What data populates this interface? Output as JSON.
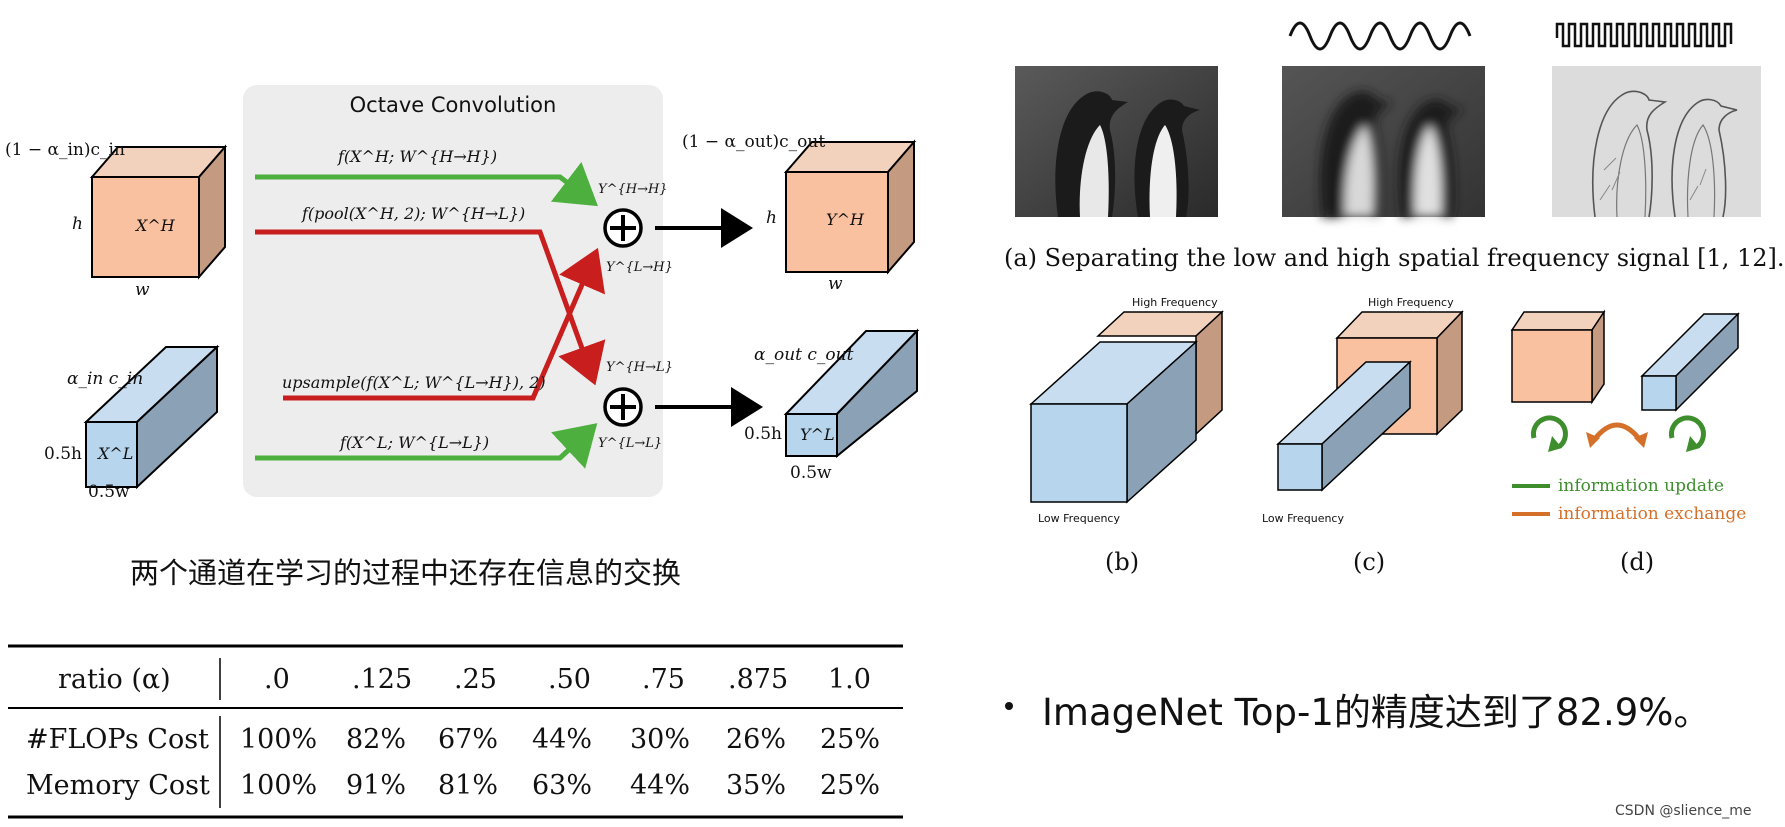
{
  "octave": {
    "title": "Octave Convolution",
    "in_high_channels": "(1 − α_in)c_in",
    "in_high_h": "h",
    "in_high_w": "w",
    "in_high_tensor": "X^H",
    "in_low_channels": "α_in c_in",
    "in_low_h": "0.5h",
    "in_low_w": "0.5w",
    "in_low_tensor": "X^L",
    "path_hh": "f(X^H; W^{H→H})",
    "path_hl": "f(pool(X^H, 2); W^{H→L})",
    "path_lh": "upsample(f(X^L; W^{L→H}), 2)",
    "path_ll": "f(X^L; W^{L→L})",
    "sum_hh": "Y^{H→H}",
    "sum_lh": "Y^{L→H}",
    "sum_hl": "Y^{H→L}",
    "sum_ll": "Y^{L→L}",
    "out_high_channels": "(1 − α_out)c_out",
    "out_high_h": "h",
    "out_high_w": "w",
    "out_high_tensor": "Y^H",
    "out_low_channels": "α_out c_out",
    "out_low_h": "0.5h",
    "out_low_w": "0.5w",
    "out_low_tensor": "Y^L"
  },
  "caption_cn": "两个通道在学习的过程中还存在信息的交换",
  "table": {
    "header": [
      "ratio (α)",
      ".0",
      ".125",
      ".25",
      ".50",
      ".75",
      ".875",
      "1.0"
    ],
    "rows": [
      [
        "#FLOPs Cost",
        "100%",
        "82%",
        "67%",
        "44%",
        "30%",
        "26%",
        "25%"
      ],
      [
        "Memory Cost",
        "100%",
        "91%",
        "81%",
        "63%",
        "44%",
        "35%",
        "25%"
      ]
    ]
  },
  "right_figure": {
    "caption_a": "(a) Separating the low and high spatial frequency signal [1, 12].",
    "b_high": "High Frequency",
    "b_low": "Low Frequency",
    "c_high": "High Frequency",
    "c_low": "Low Frequency",
    "label_b": "(b)",
    "label_c": "(c)",
    "label_d": "(d)",
    "legend_update": "information update",
    "legend_exchange": "information exchange"
  },
  "bullet": "ImageNet Top-1的精度达到了82.9%。",
  "watermark": "CSDN @slience_me",
  "colors": {
    "high_face": "#F9C1A0",
    "high_top": "#F3D2BD",
    "high_side": "#C49A80",
    "low_face": "#B7D6EE",
    "low_top": "#C8DDF0",
    "low_side": "#8BA1B6",
    "green": "#4CAF3E",
    "red": "#C81E1E",
    "panel_bg": "#EDEDED",
    "legend_green": "#3E8E2E",
    "legend_orange": "#D4702A"
  }
}
